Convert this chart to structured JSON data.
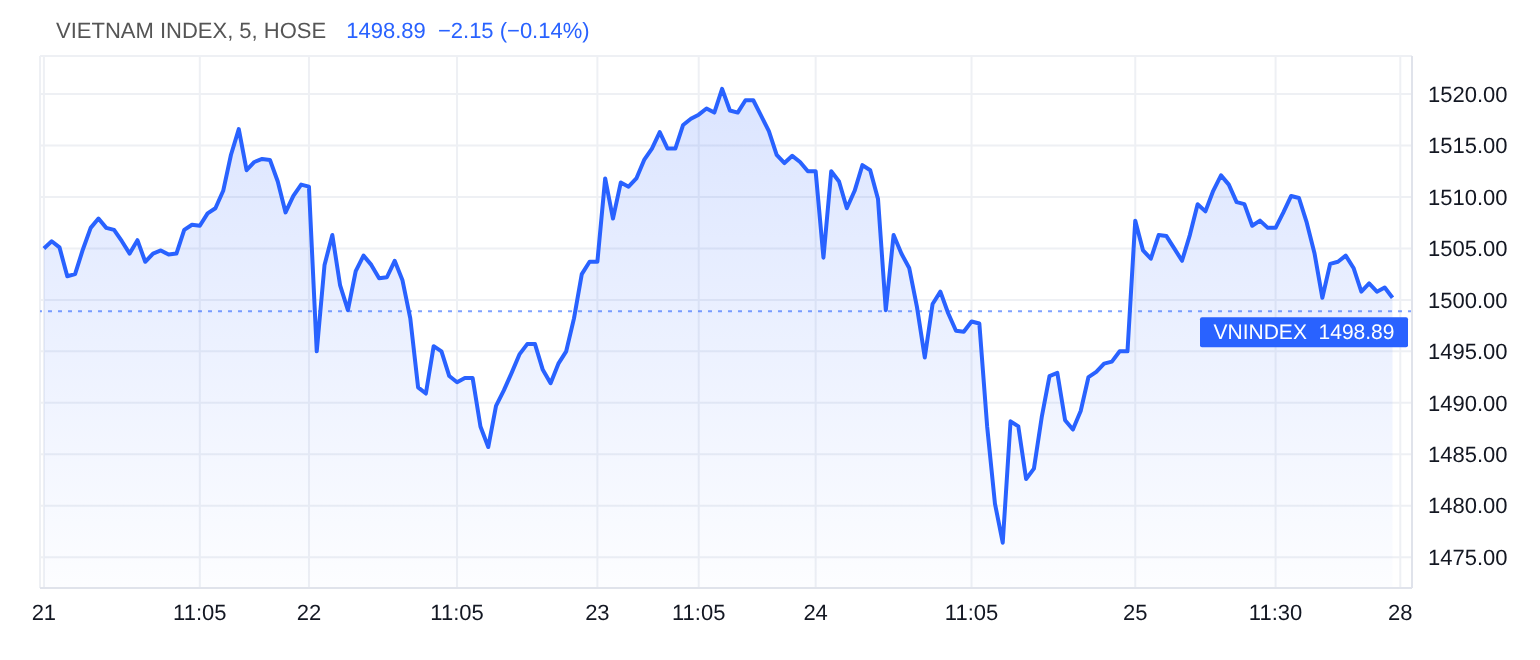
{
  "chart_data": {
    "type": "area",
    "title": "VIETNAM INDEX, 5, HOSE",
    "subtitle": "1498.89  −2.15 (−0.14%)",
    "categories": [
      "21",
      null,
      null,
      null,
      null,
      null,
      null,
      null,
      null,
      null,
      null,
      null,
      null,
      null,
      null,
      null,
      null,
      null,
      null,
      null,
      "11:05",
      null,
      null,
      null,
      null,
      null,
      null,
      null,
      null,
      null,
      null,
      null,
      null,
      null,
      "22",
      null,
      null,
      null,
      null,
      null,
      null,
      null,
      null,
      null,
      null,
      null,
      null,
      null,
      null,
      null,
      null,
      null,
      null,
      "11:05",
      null,
      null,
      null,
      null,
      null,
      null,
      null,
      null,
      null,
      null,
      null,
      null,
      null,
      null,
      null,
      null,
      null,
      "23",
      null,
      null,
      null,
      null,
      null,
      null,
      null,
      null,
      null,
      null,
      null,
      null,
      "11:05",
      null,
      null,
      null,
      null,
      null,
      null,
      null,
      null,
      null,
      null,
      null,
      null,
      null,
      null,
      "24",
      null,
      null,
      null,
      null,
      null,
      null,
      null,
      null,
      null,
      null,
      null,
      null,
      null,
      null,
      null,
      null,
      null,
      null,
      null,
      "11:05",
      null,
      null,
      null,
      null,
      null,
      null,
      null,
      null,
      null,
      null,
      null,
      null,
      null,
      null,
      null,
      null,
      null,
      null,
      null,
      null,
      "25",
      null,
      null,
      null,
      null,
      null,
      null,
      null,
      null,
      null,
      null,
      null,
      null,
      null,
      null,
      null,
      null,
      null,
      "11:30",
      null,
      null,
      null,
      null,
      null,
      null,
      null,
      null,
      null,
      null,
      null,
      null,
      null,
      null,
      null,
      "28"
    ],
    "series": [
      {
        "color": "#2962ff",
        "values": [
          1505.0,
          1505.7,
          1505.1,
          1502.3,
          1502.5,
          1504.9,
          1507.0,
          1507.9,
          1507.0,
          1506.8,
          1505.7,
          1504.5,
          1505.8,
          1503.7,
          1504.5,
          1504.8,
          1504.4,
          1504.5,
          1506.8,
          1507.3,
          1507.2,
          1508.4,
          1508.9,
          1510.6,
          1514.1,
          1516.6,
          1512.6,
          1513.4,
          1513.7,
          1513.6,
          1511.5,
          1508.5,
          1510.1,
          1511.2,
          1511.0,
          1495.0,
          1503.4,
          1506.3,
          1501.4,
          1499.0,
          1502.8,
          1504.3,
          1503.4,
          1502.1,
          1502.2,
          1503.8,
          1501.9,
          1498.2,
          1491.5,
          1490.9,
          1495.5,
          1495.0,
          1492.6,
          1492.0,
          1492.4,
          1492.4,
          1487.7,
          1485.7,
          1489.7,
          1491.2,
          1492.9,
          1494.7,
          1495.7,
          1495.7,
          1493.2,
          1491.9,
          1493.8,
          1495.0,
          1498.2,
          1502.5,
          1503.7,
          1503.7,
          1511.8,
          1507.9,
          1511.4,
          1511.0,
          1511.8,
          1513.6,
          1514.7,
          1516.3,
          1514.7,
          1514.7,
          1517.0,
          1517.6,
          1518.0,
          1518.6,
          1518.2,
          1520.5,
          1518.4,
          1518.2,
          1519.4,
          1519.4,
          1517.9,
          1516.4,
          1514.1,
          1513.3,
          1514.0,
          1513.4,
          1512.5,
          1512.5,
          1504.1,
          1512.5,
          1511.5,
          1508.9,
          1510.6,
          1513.1,
          1512.6,
          1509.8,
          1499.0,
          1506.3,
          1504.5,
          1503.1,
          1499.3,
          1494.4,
          1499.6,
          1500.8,
          1498.7,
          1497.0,
          1496.9,
          1497.9,
          1497.7,
          1487.7,
          1480.2,
          1476.4,
          1488.2,
          1487.7,
          1482.6,
          1483.6,
          1488.6,
          1492.6,
          1492.9,
          1488.3,
          1487.4,
          1489.2,
          1492.5,
          1493.0,
          1493.8,
          1494.0,
          1495.0,
          1495.0,
          1507.7,
          1504.8,
          1504.0,
          1506.3,
          1506.2,
          1505.0,
          1503.8,
          1506.3,
          1509.3,
          1508.6,
          1510.6,
          1512.1,
          1511.2,
          1509.5,
          1509.3,
          1507.2,
          1507.7,
          1507.0,
          1507.0,
          1508.5,
          1510.1,
          1509.9,
          1507.5,
          1504.5,
          1500.2,
          1503.5,
          1503.7,
          1504.3,
          1503.1,
          1500.8,
          1501.6,
          1500.8,
          1501.2,
          1500.2,
          null
        ]
      }
    ],
    "ylim": [
      1472,
      1523.7
    ],
    "yticks": [
      {
        "value": 1475,
        "label": "1475.00"
      },
      {
        "value": 1480,
        "label": "1480.00"
      },
      {
        "value": 1485,
        "label": "1485.00"
      },
      {
        "value": 1490,
        "label": "1490.00"
      },
      {
        "value": 1495,
        "label": "1495.00"
      },
      {
        "value": 1500,
        "label": "1500.00"
      },
      {
        "value": 1505,
        "label": "1505.00"
      },
      {
        "value": 1510,
        "label": "1510.00"
      },
      {
        "value": 1515,
        "label": "1515.00"
      },
      {
        "value": 1520,
        "label": "1520.00"
      }
    ],
    "ref_lines": [
      {
        "axis": "y",
        "value": 1498.89,
        "label": "VNINDEX  1498.89",
        "color": "#2962ff",
        "line_style": "dotted"
      }
    ],
    "grid": true,
    "marker": "none",
    "line_style": "solid"
  }
}
